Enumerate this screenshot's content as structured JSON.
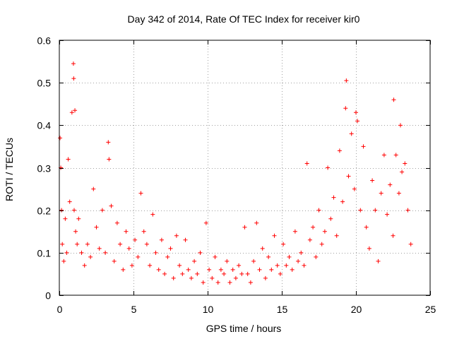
{
  "chart_data": {
    "type": "scatter",
    "title": "Day 342 of 2014, Rate Of TEC Index for receiver kir0",
    "xlabel": "GPS time / hours",
    "ylabel": "ROTI / TECUs",
    "xlim": [
      0,
      25
    ],
    "ylim": [
      0,
      0.6
    ],
    "xticks": [
      0,
      5,
      10,
      15,
      20,
      25
    ],
    "xtick_labels": [
      "0",
      "5",
      "10",
      "15",
      "20",
      "25"
    ],
    "yticks": [
      0,
      0.1,
      0.2,
      0.3,
      0.4,
      0.5,
      0.6
    ],
    "ytick_labels": [
      "0",
      "0.1",
      "0.2",
      "0.3",
      "0.4",
      "0.5",
      "0.6"
    ],
    "grid": true,
    "marker": "plus",
    "series": [
      {
        "name": "ROTI",
        "color": "#ff0000",
        "x": [
          0.05,
          0.1,
          0.15,
          0.2,
          0.3,
          0.4,
          0.5,
          0.6,
          0.7,
          0.85,
          0.95,
          0.97,
          1.0,
          1.05,
          1.1,
          1.2,
          1.3,
          1.5,
          1.7,
          1.9,
          2.1,
          2.3,
          2.5,
          2.7,
          2.9,
          3.1,
          3.3,
          3.35,
          3.5,
          3.7,
          3.9,
          4.1,
          4.3,
          4.5,
          4.7,
          4.9,
          5.1,
          5.3,
          5.5,
          5.7,
          5.9,
          6.1,
          6.3,
          6.5,
          6.7,
          6.9,
          7.1,
          7.3,
          7.5,
          7.7,
          7.9,
          8.1,
          8.3,
          8.5,
          8.7,
          8.9,
          9.1,
          9.3,
          9.5,
          9.7,
          9.9,
          10.1,
          10.3,
          10.5,
          10.7,
          10.9,
          11.1,
          11.3,
          11.5,
          11.7,
          11.9,
          12.1,
          12.3,
          12.5,
          12.7,
          12.9,
          13.1,
          13.3,
          13.5,
          13.7,
          13.9,
          14.1,
          14.3,
          14.5,
          14.7,
          14.9,
          15.1,
          15.3,
          15.5,
          15.7,
          15.9,
          16.1,
          16.3,
          16.5,
          16.7,
          16.9,
          17.1,
          17.3,
          17.5,
          17.7,
          17.9,
          18.1,
          18.3,
          18.5,
          18.7,
          18.9,
          19.1,
          19.3,
          19.35,
          19.5,
          19.7,
          19.9,
          20.0,
          20.1,
          20.3,
          20.5,
          20.7,
          20.9,
          21.1,
          21.3,
          21.5,
          21.7,
          21.9,
          22.1,
          22.3,
          22.5,
          22.55,
          22.7,
          22.9,
          23.0,
          23.1,
          23.3,
          23.5,
          23.7
        ],
        "y": [
          0.37,
          0.3,
          0.2,
          0.12,
          0.08,
          0.18,
          0.1,
          0.32,
          0.22,
          0.43,
          0.545,
          0.51,
          0.2,
          0.435,
          0.15,
          0.12,
          0.18,
          0.1,
          0.07,
          0.12,
          0.09,
          0.25,
          0.16,
          0.11,
          0.2,
          0.1,
          0.36,
          0.32,
          0.21,
          0.08,
          0.17,
          0.12,
          0.06,
          0.15,
          0.11,
          0.07,
          0.13,
          0.09,
          0.24,
          0.15,
          0.12,
          0.07,
          0.19,
          0.1,
          0.06,
          0.13,
          0.05,
          0.09,
          0.11,
          0.04,
          0.14,
          0.07,
          0.05,
          0.13,
          0.06,
          0.04,
          0.08,
          0.05,
          0.1,
          0.03,
          0.17,
          0.06,
          0.04,
          0.09,
          0.03,
          0.06,
          0.05,
          0.08,
          0.03,
          0.06,
          0.04,
          0.07,
          0.05,
          0.16,
          0.05,
          0.03,
          0.08,
          0.17,
          0.06,
          0.11,
          0.04,
          0.09,
          0.06,
          0.14,
          0.07,
          0.05,
          0.12,
          0.07,
          0.09,
          0.06,
          0.15,
          0.08,
          0.1,
          0.07,
          0.31,
          0.13,
          0.16,
          0.09,
          0.2,
          0.12,
          0.15,
          0.3,
          0.18,
          0.23,
          0.14,
          0.34,
          0.22,
          0.44,
          0.505,
          0.28,
          0.38,
          0.25,
          0.43,
          0.41,
          0.2,
          0.35,
          0.16,
          0.11,
          0.27,
          0.2,
          0.08,
          0.24,
          0.33,
          0.19,
          0.26,
          0.14,
          0.46,
          0.33,
          0.24,
          0.4,
          0.29,
          0.31,
          0.2,
          0.12
        ]
      }
    ]
  }
}
